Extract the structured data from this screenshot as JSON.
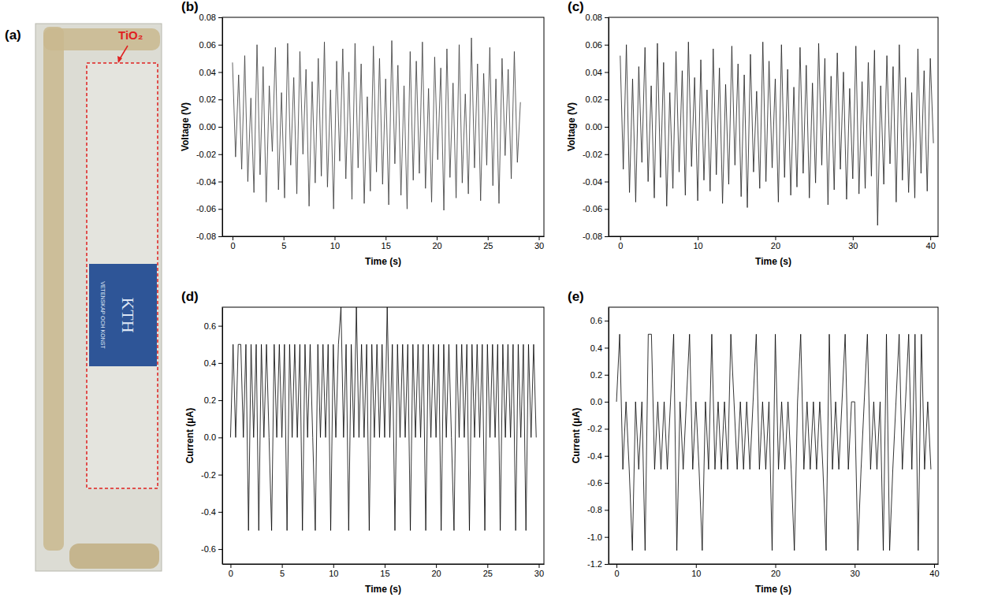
{
  "photo": {
    "panel": "(a)",
    "label": "TiO₂",
    "logo_text": "KTH",
    "logo_motto": "VETENSKAP OCH KONST"
  },
  "chart_data": [
    {
      "type": "line",
      "panel": "(b)",
      "x_label": "Time (s)",
      "y_label": "Voltage (V)",
      "xlim": [
        -1,
        30.5
      ],
      "xticks": [
        0,
        5,
        10,
        15,
        20,
        25,
        30
      ],
      "ylim": [
        -0.08,
        0.08
      ],
      "yticks": [
        -0.08,
        -0.06,
        -0.04,
        -0.02,
        {
          "value": 0,
          "label": "0.00"
        },
        0.02,
        0.04,
        0.06,
        0.08
      ],
      "x": [
        0,
        0.3,
        0.6,
        0.9,
        1.2,
        1.5,
        1.8,
        2.1,
        2.4,
        2.7,
        3,
        3.3,
        3.6,
        3.9,
        4.2,
        4.5,
        4.8,
        5.1,
        5.4,
        5.7,
        6,
        6.3,
        6.6,
        6.9,
        7.2,
        7.5,
        7.8,
        8.1,
        8.4,
        8.7,
        9,
        9.3,
        9.6,
        9.9,
        10.2,
        10.5,
        10.8,
        11.1,
        11.4,
        11.7,
        12,
        12.3,
        12.6,
        12.9,
        13.2,
        13.5,
        13.8,
        14.1,
        14.4,
        14.7,
        15,
        15.3,
        15.6,
        15.9,
        16.2,
        16.5,
        16.8,
        17.1,
        17.4,
        17.7,
        18,
        18.3,
        18.6,
        18.9,
        19.2,
        19.5,
        19.8,
        20.1,
        20.4,
        20.7,
        21,
        21.3,
        21.6,
        21.9,
        22.2,
        22.5,
        22.8,
        23.1,
        23.4,
        23.7,
        24,
        24.3,
        24.6,
        24.9,
        25.2,
        25.5,
        25.8,
        26.1,
        26.4,
        26.7,
        27,
        27.3,
        27.6,
        27.9,
        28.2
      ],
      "series": [
        {
          "color": "#3a3a3a",
          "values": [
            0.047,
            -0.022,
            0.038,
            -0.031,
            0.052,
            -0.04,
            0.021,
            -0.048,
            0.06,
            -0.035,
            0.044,
            -0.055,
            0.03,
            -0.018,
            0.058,
            -0.046,
            0.025,
            -0.052,
            0.061,
            -0.028,
            0.036,
            -0.049,
            0.055,
            -0.02,
            0.042,
            -0.058,
            0.033,
            -0.041,
            0.05,
            -0.036,
            0.062,
            -0.044,
            0.027,
            -0.06,
            0.048,
            -0.025,
            0.057,
            -0.038,
            0.04,
            -0.053,
            0.061,
            -0.03,
            0.046,
            -0.056,
            0.022,
            -0.047,
            0.059,
            -0.033,
            0.05,
            -0.042,
            0.035,
            -0.057,
            0.063,
            -0.027,
            0.045,
            -0.05,
            0.03,
            -0.06,
            0.055,
            -0.039,
            0.048,
            -0.034,
            0.062,
            -0.045,
            0.028,
            -0.055,
            0.051,
            -0.024,
            0.043,
            -0.061,
            0.057,
            -0.037,
            0.032,
            -0.052,
            0.06,
            -0.041,
            0.024,
            -0.049,
            0.065,
            -0.03,
            0.046,
            -0.054,
            0.039,
            -0.028,
            0.058,
            -0.043,
            0.035,
            -0.056,
            0.05,
            -0.021,
            0.042,
            -0.038,
            0.055,
            -0.026,
            0.018
          ]
        }
      ]
    },
    {
      "type": "line",
      "panel": "(c)",
      "x_label": "Time (s)",
      "y_label": "Voltage (V)",
      "xlim": [
        -1.5,
        41
      ],
      "xticks": [
        0,
        10,
        20,
        30,
        40
      ],
      "ylim": [
        -0.08,
        0.08
      ],
      "yticks": [
        -0.08,
        -0.06,
        -0.04,
        -0.02,
        {
          "value": 0,
          "label": "0.00"
        },
        0.02,
        0.04,
        0.06,
        0.08
      ],
      "x": [
        0,
        0.4,
        0.8,
        1.2,
        1.6,
        2,
        2.4,
        2.8,
        3.2,
        3.6,
        4,
        4.4,
        4.8,
        5.2,
        5.6,
        6,
        6.4,
        6.8,
        7.2,
        7.6,
        8,
        8.4,
        8.8,
        9.2,
        9.6,
        10,
        10.4,
        10.8,
        11.2,
        11.6,
        12,
        12.4,
        12.8,
        13.2,
        13.6,
        14,
        14.4,
        14.8,
        15.2,
        15.6,
        16,
        16.4,
        16.8,
        17.2,
        17.6,
        18,
        18.4,
        18.8,
        19.2,
        19.6,
        20,
        20.4,
        20.8,
        21.2,
        21.6,
        22,
        22.4,
        22.8,
        23.2,
        23.6,
        24,
        24.4,
        24.8,
        25.2,
        25.6,
        26,
        26.4,
        26.8,
        27.2,
        27.6,
        28,
        28.4,
        28.8,
        29.2,
        29.6,
        30,
        30.4,
        30.8,
        31.2,
        31.6,
        32,
        32.4,
        32.8,
        33.2,
        33.6,
        34,
        34.4,
        34.8,
        35.2,
        35.6,
        36,
        36.4,
        36.8,
        37.2,
        37.6,
        38,
        38.4,
        38.8,
        39.2,
        39.6,
        40,
        40.4
      ],
      "series": [
        {
          "color": "#1e1e1e",
          "values": [
            0.052,
            -0.031,
            0.06,
            -0.048,
            0.035,
            -0.055,
            0.044,
            -0.026,
            0.058,
            -0.04,
            0.03,
            -0.052,
            0.061,
            -0.037,
            0.047,
            -0.058,
            0.025,
            -0.045,
            0.055,
            -0.033,
            0.041,
            -0.05,
            0.062,
            -0.029,
            0.036,
            -0.054,
            0.049,
            -0.039,
            0.027,
            -0.047,
            0.057,
            -0.035,
            0.043,
            -0.056,
            0.031,
            -0.042,
            0.059,
            -0.028,
            0.046,
            -0.051,
            0.038,
            -0.059,
            0.053,
            -0.033,
            0.026,
            -0.045,
            0.062,
            -0.04,
            0.048,
            -0.03,
            0.035,
            -0.055,
            0.06,
            -0.037,
            0.042,
            -0.05,
            0.029,
            -0.044,
            0.058,
            -0.034,
            0.045,
            -0.052,
            0.032,
            -0.041,
            0.061,
            -0.028,
            0.05,
            -0.057,
            0.037,
            -0.046,
            0.054,
            -0.031,
            0.04,
            -0.053,
            0.028,
            -0.038,
            0.059,
            -0.049,
            0.033,
            -0.045,
            0.047,
            -0.036,
            0.056,
            -0.072,
            0.03,
            -0.042,
            0.052,
            -0.027,
            0.044,
            -0.055,
            0.06,
            -0.039,
            0.036,
            -0.048,
            0.025,
            -0.052,
            0.057,
            -0.034,
            0.041,
            -0.047,
            0.05,
            -0.012
          ]
        }
      ]
    },
    {
      "type": "line",
      "panel": "(d)",
      "x_label": "Time (s)",
      "y_label": "Current (μA)",
      "xlim": [
        -0.8,
        30.5
      ],
      "xticks": [
        0,
        5,
        10,
        15,
        20,
        25,
        30
      ],
      "ylim": [
        -0.68,
        0.7
      ],
      "yticks": [
        -0.6,
        -0.4,
        -0.2,
        {
          "value": 0,
          "label": "0.0"
        },
        0.2,
        0.4,
        0.6
      ],
      "x": [
        0,
        0.25,
        0.5,
        0.75,
        1,
        1.25,
        1.5,
        1.75,
        2,
        2.25,
        2.5,
        2.75,
        3,
        3.25,
        3.5,
        3.75,
        4,
        4.25,
        4.5,
        4.75,
        5,
        5.25,
        5.5,
        5.75,
        6,
        6.25,
        6.5,
        6.75,
        7,
        7.25,
        7.5,
        7.75,
        8,
        8.25,
        8.5,
        8.75,
        9,
        9.25,
        9.5,
        9.75,
        10,
        10.25,
        10.5,
        10.75,
        11,
        11.25,
        11.5,
        11.75,
        12,
        12.25,
        12.5,
        12.75,
        13,
        13.25,
        13.5,
        13.75,
        14,
        14.25,
        14.5,
        14.75,
        15,
        15.25,
        15.5,
        15.75,
        16,
        16.25,
        16.5,
        16.75,
        17,
        17.25,
        17.5,
        17.75,
        18,
        18.25,
        18.5,
        18.75,
        19,
        19.25,
        19.5,
        19.75,
        20,
        20.25,
        20.5,
        20.75,
        21,
        21.25,
        21.5,
        21.75,
        22,
        22.25,
        22.5,
        22.75,
        23,
        23.25,
        23.5,
        23.75,
        24,
        24.25,
        24.5,
        24.75,
        25,
        25.25,
        25.5,
        25.75,
        26,
        26.25,
        26.5,
        26.75,
        27,
        27.25,
        27.5,
        27.75,
        28,
        28.25,
        28.5,
        28.75,
        29,
        29.25,
        29.5,
        29.75
      ],
      "series": [
        {
          "color": "#000000",
          "values": [
            0,
            0.5,
            0,
            0.5,
            0.5,
            0,
            0.5,
            -0.5,
            0.5,
            0,
            0.5,
            -0.5,
            0.5,
            0,
            0.5,
            0,
            -0.5,
            0.5,
            0,
            0.5,
            0,
            0.5,
            -0.5,
            0.5,
            0,
            0.5,
            0,
            0.5,
            -0.5,
            0.5,
            0,
            0.5,
            0,
            -0.5,
            0.5,
            0,
            0.5,
            0,
            0.5,
            -0.5,
            0.5,
            0,
            0.5,
            0.7,
            0,
            0.5,
            -0.5,
            0.5,
            0,
            0.7,
            0,
            0.5,
            0,
            0.5,
            -0.5,
            0.5,
            0,
            0.5,
            0,
            0.5,
            0,
            0.7,
            0,
            0.5,
            -0.5,
            0.5,
            0,
            0.5,
            0,
            0.5,
            -0.5,
            0.5,
            0,
            0.5,
            0,
            0.5,
            -0.5,
            0.5,
            0,
            0.5,
            0,
            0.5,
            -0.5,
            0.5,
            0,
            0.5,
            0,
            -0.5,
            0.5,
            0,
            0.5,
            0,
            0.5,
            -0.5,
            0.5,
            0,
            0.5,
            0,
            0.5,
            -0.5,
            0.5,
            0,
            0.5,
            0,
            0.5,
            -0.5,
            0.5,
            0,
            0.5,
            0,
            0.5,
            -0.5,
            0.5,
            0,
            0.5,
            -0.5,
            0.5,
            0,
            0.5,
            0
          ]
        }
      ]
    },
    {
      "type": "line",
      "panel": "(e)",
      "x_label": "Time (s)",
      "y_label": "Current (μA)",
      "xlim": [
        -1,
        40.5
      ],
      "xticks": [
        0,
        10,
        20,
        30,
        40
      ],
      "ylim": [
        -1.2,
        0.7
      ],
      "yticks": [
        -1.2,
        {
          "value": -1,
          "label": "-1.0"
        },
        -0.8,
        -0.6,
        -0.4,
        -0.2,
        {
          "value": 0,
          "label": "0.0"
        },
        0.2,
        0.4,
        0.6
      ],
      "x": [
        0,
        0.4,
        0.8,
        1.2,
        1.6,
        2,
        2.4,
        2.8,
        3.2,
        3.6,
        4,
        4.4,
        4.8,
        5.2,
        5.6,
        6,
        6.4,
        6.8,
        7.2,
        7.6,
        8,
        8.4,
        8.8,
        9.2,
        9.6,
        10,
        10.4,
        10.8,
        11.2,
        11.6,
        12,
        12.4,
        12.8,
        13.2,
        13.6,
        14,
        14.4,
        14.8,
        15.2,
        15.6,
        16,
        16.4,
        16.8,
        17.2,
        17.6,
        18,
        18.4,
        18.8,
        19.2,
        19.6,
        20,
        20.4,
        20.8,
        21.2,
        21.6,
        22,
        22.4,
        22.8,
        23.2,
        23.6,
        24,
        24.4,
        24.8,
        25.2,
        25.6,
        26,
        26.4,
        26.8,
        27.2,
        27.6,
        28,
        28.4,
        28.8,
        29.2,
        29.6,
        30,
        30.4,
        30.8,
        31.2,
        31.6,
        32,
        32.4,
        32.8,
        33.2,
        33.6,
        34,
        34.4,
        34.8,
        35.2,
        35.6,
        36,
        36.4,
        36.8,
        37.2,
        37.6,
        38,
        38.4,
        38.8,
        39.2,
        39.6
      ],
      "series": [
        {
          "color": "#000000",
          "values": [
            0,
            0.5,
            -0.5,
            0,
            -0.5,
            -1.1,
            0,
            -0.5,
            0,
            -1.1,
            0.5,
            0.5,
            -0.5,
            0,
            -0.5,
            0,
            -0.5,
            0,
            0.5,
            -1.1,
            0,
            -0.5,
            0,
            0.5,
            -0.5,
            0,
            -0.5,
            -1.1,
            0,
            -0.5,
            0.5,
            -0.5,
            0,
            -0.5,
            0,
            -0.5,
            0.5,
            0,
            -0.5,
            0,
            -0.5,
            0,
            -0.5,
            0,
            0.5,
            -0.5,
            0,
            -0.5,
            0,
            -1.1,
            0.5,
            -0.5,
            0,
            -0.5,
            0,
            -0.5,
            -1.1,
            0,
            0.5,
            -0.5,
            0,
            -0.5,
            0,
            -0.5,
            0,
            -0.5,
            -1.1,
            0.5,
            -0.5,
            0,
            -0.5,
            0,
            0.5,
            -0.5,
            0,
            0,
            -1.1,
            -0.5,
            0,
            0.5,
            -0.5,
            0,
            -0.5,
            0,
            -1.1,
            0.5,
            -1.1,
            -0.5,
            0,
            0.5,
            -0.5,
            0,
            0.5,
            -0.5,
            0.5,
            -1.1,
            0.5,
            -0.5,
            0,
            -0.5
          ]
        }
      ]
    }
  ]
}
